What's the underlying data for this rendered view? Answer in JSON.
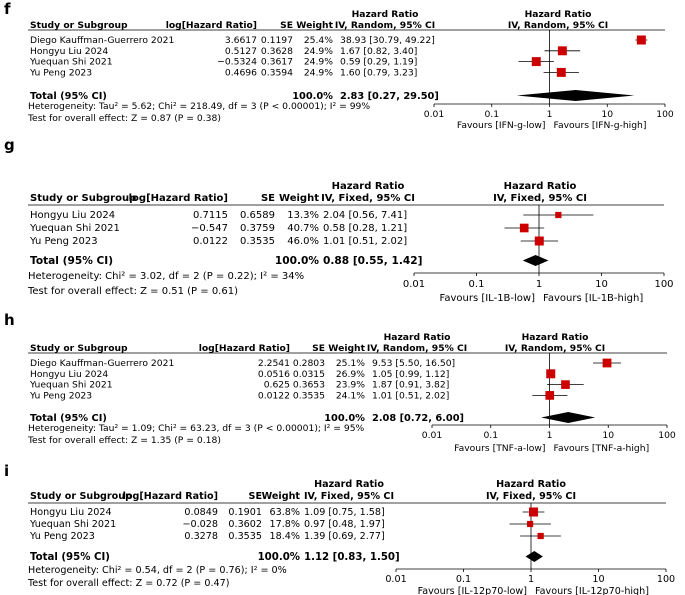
{
  "chart_data": [
    {
      "type": "forest",
      "panel_label": "f",
      "col_study": "Study or Subgroup",
      "col_log": "log[Hazard Ratio]",
      "col_se": "SE",
      "col_weight": "Weight",
      "col_hr_title": "Hazard Ratio",
      "col_hr_method": "IV, Random, 95% CI",
      "plot_title": "Hazard Ratio",
      "plot_method": "IV, Random, 95% CI",
      "studies": [
        {
          "name": "Diego Kauffman-Guerrero 2021",
          "log": "3.6617",
          "se": "0.1197",
          "weight": "25.4%",
          "ci_text": "38.93 [30.79, 49.22]",
          "hr": 38.93,
          "lo": 30.79,
          "hi": 49.22,
          "w": 25.4
        },
        {
          "name": "Hongyu Liu 2024",
          "log": "0.5127",
          "se": "0.3628",
          "weight": "24.9%",
          "ci_text": "1.67 [0.82, 3.40]",
          "hr": 1.67,
          "lo": 0.82,
          "hi": 3.4,
          "w": 24.9
        },
        {
          "name": "Yuequan Shi 2021",
          "log": "−0.5324",
          "se": "0.3617",
          "weight": "24.9%",
          "ci_text": "0.59 [0.29, 1.19]",
          "hr": 0.59,
          "lo": 0.29,
          "hi": 1.19,
          "w": 24.9
        },
        {
          "name": "Yu Peng 2023",
          "log": "0.4696",
          "se": "0.3594",
          "weight": "24.9%",
          "ci_text": "1.60 [0.79, 3.23]",
          "hr": 1.6,
          "lo": 0.79,
          "hi": 3.23,
          "w": 24.9
        }
      ],
      "total": {
        "label": "Total (95% CI)",
        "weight": "100.0%",
        "ci_text": "2.83 [0.27, 29.50]",
        "hr": 2.83,
        "lo": 0.27,
        "hi": 29.5
      },
      "heterogeneity": "Heterogeneity: Tau² = 5.62; Chi² = 218.49, df = 3 (P < 0.00001); I² = 99%",
      "overall": "Test for overall effect: Z = 0.87 (P = 0.38)",
      "ticks": [
        0.01,
        0.1,
        1,
        10,
        100
      ],
      "tick_labels": [
        "0.01",
        "0.1",
        "1",
        "10",
        "100"
      ],
      "favours_left": "Favours [IFN-g-low]",
      "favours_right": "Favours [IFN-g-high]"
    },
    {
      "type": "forest",
      "panel_label": "g",
      "col_study": "Study or Subgroup",
      "col_log": "log[Hazard Ratio]",
      "col_se": "SE",
      "col_weight": "Weight",
      "col_hr_title": "Hazard Ratio",
      "col_hr_method": "IV, Fixed, 95% CI",
      "plot_title": "Hazard Ratio",
      "plot_method": "IV, Fixed, 95% CI",
      "studies": [
        {
          "name": "Hongyu Liu 2024",
          "log": "0.7115",
          "se": "0.6589",
          "weight": "13.3%",
          "ci_text": "2.04 [0.56, 7.41]",
          "hr": 2.04,
          "lo": 0.56,
          "hi": 7.41,
          "w": 13.3
        },
        {
          "name": "Yuequan Shi 2021",
          "log": "−0.547",
          "se": "0.3759",
          "weight": "40.7%",
          "ci_text": "0.58 [0.28, 1.21]",
          "hr": 0.58,
          "lo": 0.28,
          "hi": 1.21,
          "w": 40.7
        },
        {
          "name": "Yu Peng 2023",
          "log": "0.0122",
          "se": "0.3535",
          "weight": "46.0%",
          "ci_text": "1.01 [0.51, 2.02]",
          "hr": 1.01,
          "lo": 0.51,
          "hi": 2.02,
          "w": 46.0
        }
      ],
      "total": {
        "label": "Total (95% CI)",
        "weight": "100.0%",
        "ci_text": "0.88 [0.55, 1.42]",
        "hr": 0.88,
        "lo": 0.55,
        "hi": 1.42
      },
      "heterogeneity": "Heterogeneity: Chi² = 3.02, df = 2 (P = 0.22); I² = 34%",
      "overall": "Test for overall effect: Z = 0.51 (P = 0.61)",
      "ticks": [
        0.01,
        0.1,
        1,
        10,
        100
      ],
      "tick_labels": [
        "0.01",
        "0.1",
        "1",
        "10",
        "100"
      ],
      "favours_left": "Favours [IL-1B-low]",
      "favours_right": "Favours [IL-1B-high]"
    },
    {
      "type": "forest",
      "panel_label": "h",
      "col_study": "Study or Subgroup",
      "col_log": "log[Hazard Ratio]",
      "col_se": "SE",
      "col_weight": "Weight",
      "col_hr_title": "Hazard Ratio",
      "col_hr_method": "IV, Random, 95% CI",
      "plot_title": "Hazard Ratio",
      "plot_method": "IV, Random, 95% CI",
      "studies": [
        {
          "name": "Diego Kauffman-Guerrero 2021",
          "log": "2.2541",
          "se": "0.2803",
          "weight": "25.1%",
          "ci_text": "9.53 [5.50, 16.50]",
          "hr": 9.53,
          "lo": 5.5,
          "hi": 16.5,
          "w": 25.1
        },
        {
          "name": "Hongyu Liu 2024",
          "log": "0.0516",
          "se": "0.0315",
          "weight": "26.9%",
          "ci_text": "1.05 [0.99, 1.12]",
          "hr": 1.05,
          "lo": 0.99,
          "hi": 1.12,
          "w": 26.9
        },
        {
          "name": "Yuequan Shi 2021",
          "log": "0.625",
          "se": "0.3653",
          "weight": "23.9%",
          "ci_text": "1.87 [0.91, 3.82]",
          "hr": 1.87,
          "lo": 0.91,
          "hi": 3.82,
          "w": 23.9
        },
        {
          "name": "Yu Peng 2023",
          "log": "0.0122",
          "se": "0.3535",
          "weight": "24.1%",
          "ci_text": "1.01 [0.51, 2.02]",
          "hr": 1.01,
          "lo": 0.51,
          "hi": 2.02,
          "w": 24.1
        }
      ],
      "total": {
        "label": "Total (95% CI)",
        "weight": "100.0%",
        "ci_text": "2.08 [0.72, 6.00]",
        "hr": 2.08,
        "lo": 0.72,
        "hi": 6.0
      },
      "heterogeneity": "Heterogeneity: Tau² = 1.09; Chi² = 63.23, df = 3 (P < 0.00001); I² = 95%",
      "overall": "Test for overall effect: Z = 1.35 (P = 0.18)",
      "ticks": [
        0.01,
        0.1,
        1,
        10,
        100
      ],
      "tick_labels": [
        "0.01",
        "0.1",
        "1",
        "10",
        "100"
      ],
      "favours_left": "Favours [TNF-a-low]",
      "favours_right": "Favours [TNF-a-high]"
    },
    {
      "type": "forest",
      "panel_label": "i",
      "col_study": "Study or Subgroup",
      "col_log": "log[Hazard Ratio]",
      "col_se": "SE",
      "col_weight": "Weight",
      "col_hr_title": "Hazard Ratio",
      "col_hr_method": "IV, Fixed, 95% CI",
      "plot_title": "Hazard Ratio",
      "plot_method": "IV, Fixed, 95% CI",
      "studies": [
        {
          "name": "Hongyu Liu 2024",
          "log": "0.0849",
          "se": "0.1901",
          "weight": "63.8%",
          "ci_text": "1.09 [0.75, 1.58]",
          "hr": 1.09,
          "lo": 0.75,
          "hi": 1.58,
          "w": 63.8
        },
        {
          "name": "Yuequan Shi 2021",
          "log": "−0.028",
          "se": "0.3602",
          "weight": "17.8%",
          "ci_text": "0.97 [0.48, 1.97]",
          "hr": 0.97,
          "lo": 0.48,
          "hi": 1.97,
          "w": 17.8
        },
        {
          "name": "Yu Peng 2023",
          "log": "0.3278",
          "se": "0.3535",
          "weight": "18.4%",
          "ci_text": "1.39 [0.69, 2.77]",
          "hr": 1.39,
          "lo": 0.69,
          "hi": 2.77,
          "w": 18.4
        }
      ],
      "total": {
        "label": "Total (95% CI)",
        "weight": "100.0%",
        "ci_text": "1.12 [0.83, 1.50]",
        "hr": 1.12,
        "lo": 0.83,
        "hi": 1.5
      },
      "heterogeneity": "Heterogeneity: Chi² = 0.54, df = 2 (P = 0.76); I² = 0%",
      "overall": "Test for overall effect: Z = 0.72 (P = 0.47)",
      "ticks": [
        0.01,
        0.1,
        1,
        10,
        100
      ],
      "tick_labels": [
        "0.01",
        "0.1",
        "1",
        "10",
        "100"
      ],
      "favours_left": "Favours [IL-12p70-low]",
      "favours_right": "Favours [IL-12p70-high]"
    }
  ],
  "colors": {
    "marker": "#cc0000",
    "ink": "#000000",
    "line": "#000000"
  }
}
